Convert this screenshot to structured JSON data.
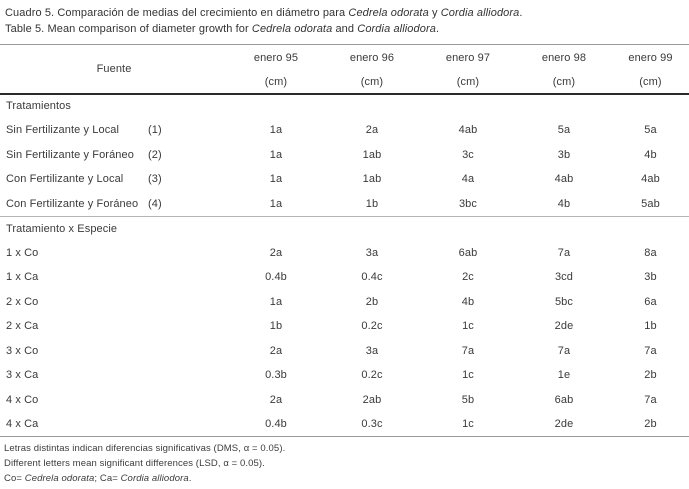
{
  "title": {
    "line1": {
      "prefix": "Cuadro 5. Comparación de medias del crecimiento en diámetro para ",
      "species1": "Cedrela odorata",
      "middle": " y ",
      "species2": "Cordia alliodora",
      "suffix": "."
    },
    "line2": {
      "prefix": "Table 5. Mean comparison of diameter growth for ",
      "species1": "Cedrela odorata",
      "middle": " and ",
      "species2": "Cordia alliodora",
      "suffix": "."
    }
  },
  "table": {
    "header": {
      "source_label": "Fuente",
      "columns": [
        "enero 95",
        "enero 96",
        "enero 97",
        "enero 98",
        "enero 99"
      ],
      "unit": "(cm)"
    },
    "sections": [
      {
        "label": "Tratamientos",
        "rows": [
          {
            "name": "Sin Fertilizante y Local",
            "code": "(1)",
            "values": [
              "1a",
              "2a",
              "4ab",
              "5a",
              "5a"
            ]
          },
          {
            "name": "Sin Fertilizante y Foráneo",
            "code": "(2)",
            "values": [
              "1a",
              "1ab",
              "3c",
              "3b",
              "4b"
            ]
          },
          {
            "name": "Con Fertilizante y Local",
            "code": "(3)",
            "values": [
              "1a",
              "1ab",
              "4a",
              "4ab",
              "4ab"
            ]
          },
          {
            "name": "Con Fertilizante y Foráneo",
            "code": "(4)",
            "values": [
              "1a",
              "1b",
              "3bc",
              "4b",
              "5ab"
            ]
          }
        ]
      },
      {
        "label": "Tratamiento x Especie",
        "rows": [
          {
            "name": "1 x Co",
            "code": "",
            "values": [
              "2a",
              "3a",
              "6ab",
              "7a",
              "8a"
            ]
          },
          {
            "name": "1 x Ca",
            "code": "",
            "values": [
              "0.4b",
              "0.4c",
              "2c",
              "3cd",
              "3b"
            ]
          },
          {
            "name": "2 x Co",
            "code": "",
            "values": [
              "1a",
              "2b",
              "4b",
              "5bc",
              "6a"
            ]
          },
          {
            "name": "2 x Ca",
            "code": "",
            "values": [
              "1b",
              "0.2c",
              "1c",
              "2de",
              "1b"
            ]
          },
          {
            "name": "3 x Co",
            "code": "",
            "values": [
              "2a",
              "3a",
              "7a",
              "7a",
              "7a"
            ]
          },
          {
            "name": "3 x Ca",
            "code": "",
            "values": [
              "0.3b",
              "0.2c",
              "1c",
              "1e",
              "2b"
            ]
          },
          {
            "name": "4 x Co",
            "code": "",
            "values": [
              "2a",
              "2ab",
              "5b",
              "6ab",
              "7a"
            ]
          },
          {
            "name": "4 x Ca",
            "code": "",
            "values": [
              "0.4b",
              "0.3c",
              "1c",
              "2de",
              "2b"
            ]
          }
        ]
      }
    ]
  },
  "footnotes": {
    "line1": "Letras distintas indican diferencias significativas (DMS, α = 0.05).",
    "line2": "Different letters mean significant differences (LSD, α = 0.05).",
    "line3": {
      "prefix": "Co= ",
      "species1": "Cedrela odorata",
      "middle": "; Ca= ",
      "species2": "Cordia alliodora",
      "suffix": "."
    }
  }
}
